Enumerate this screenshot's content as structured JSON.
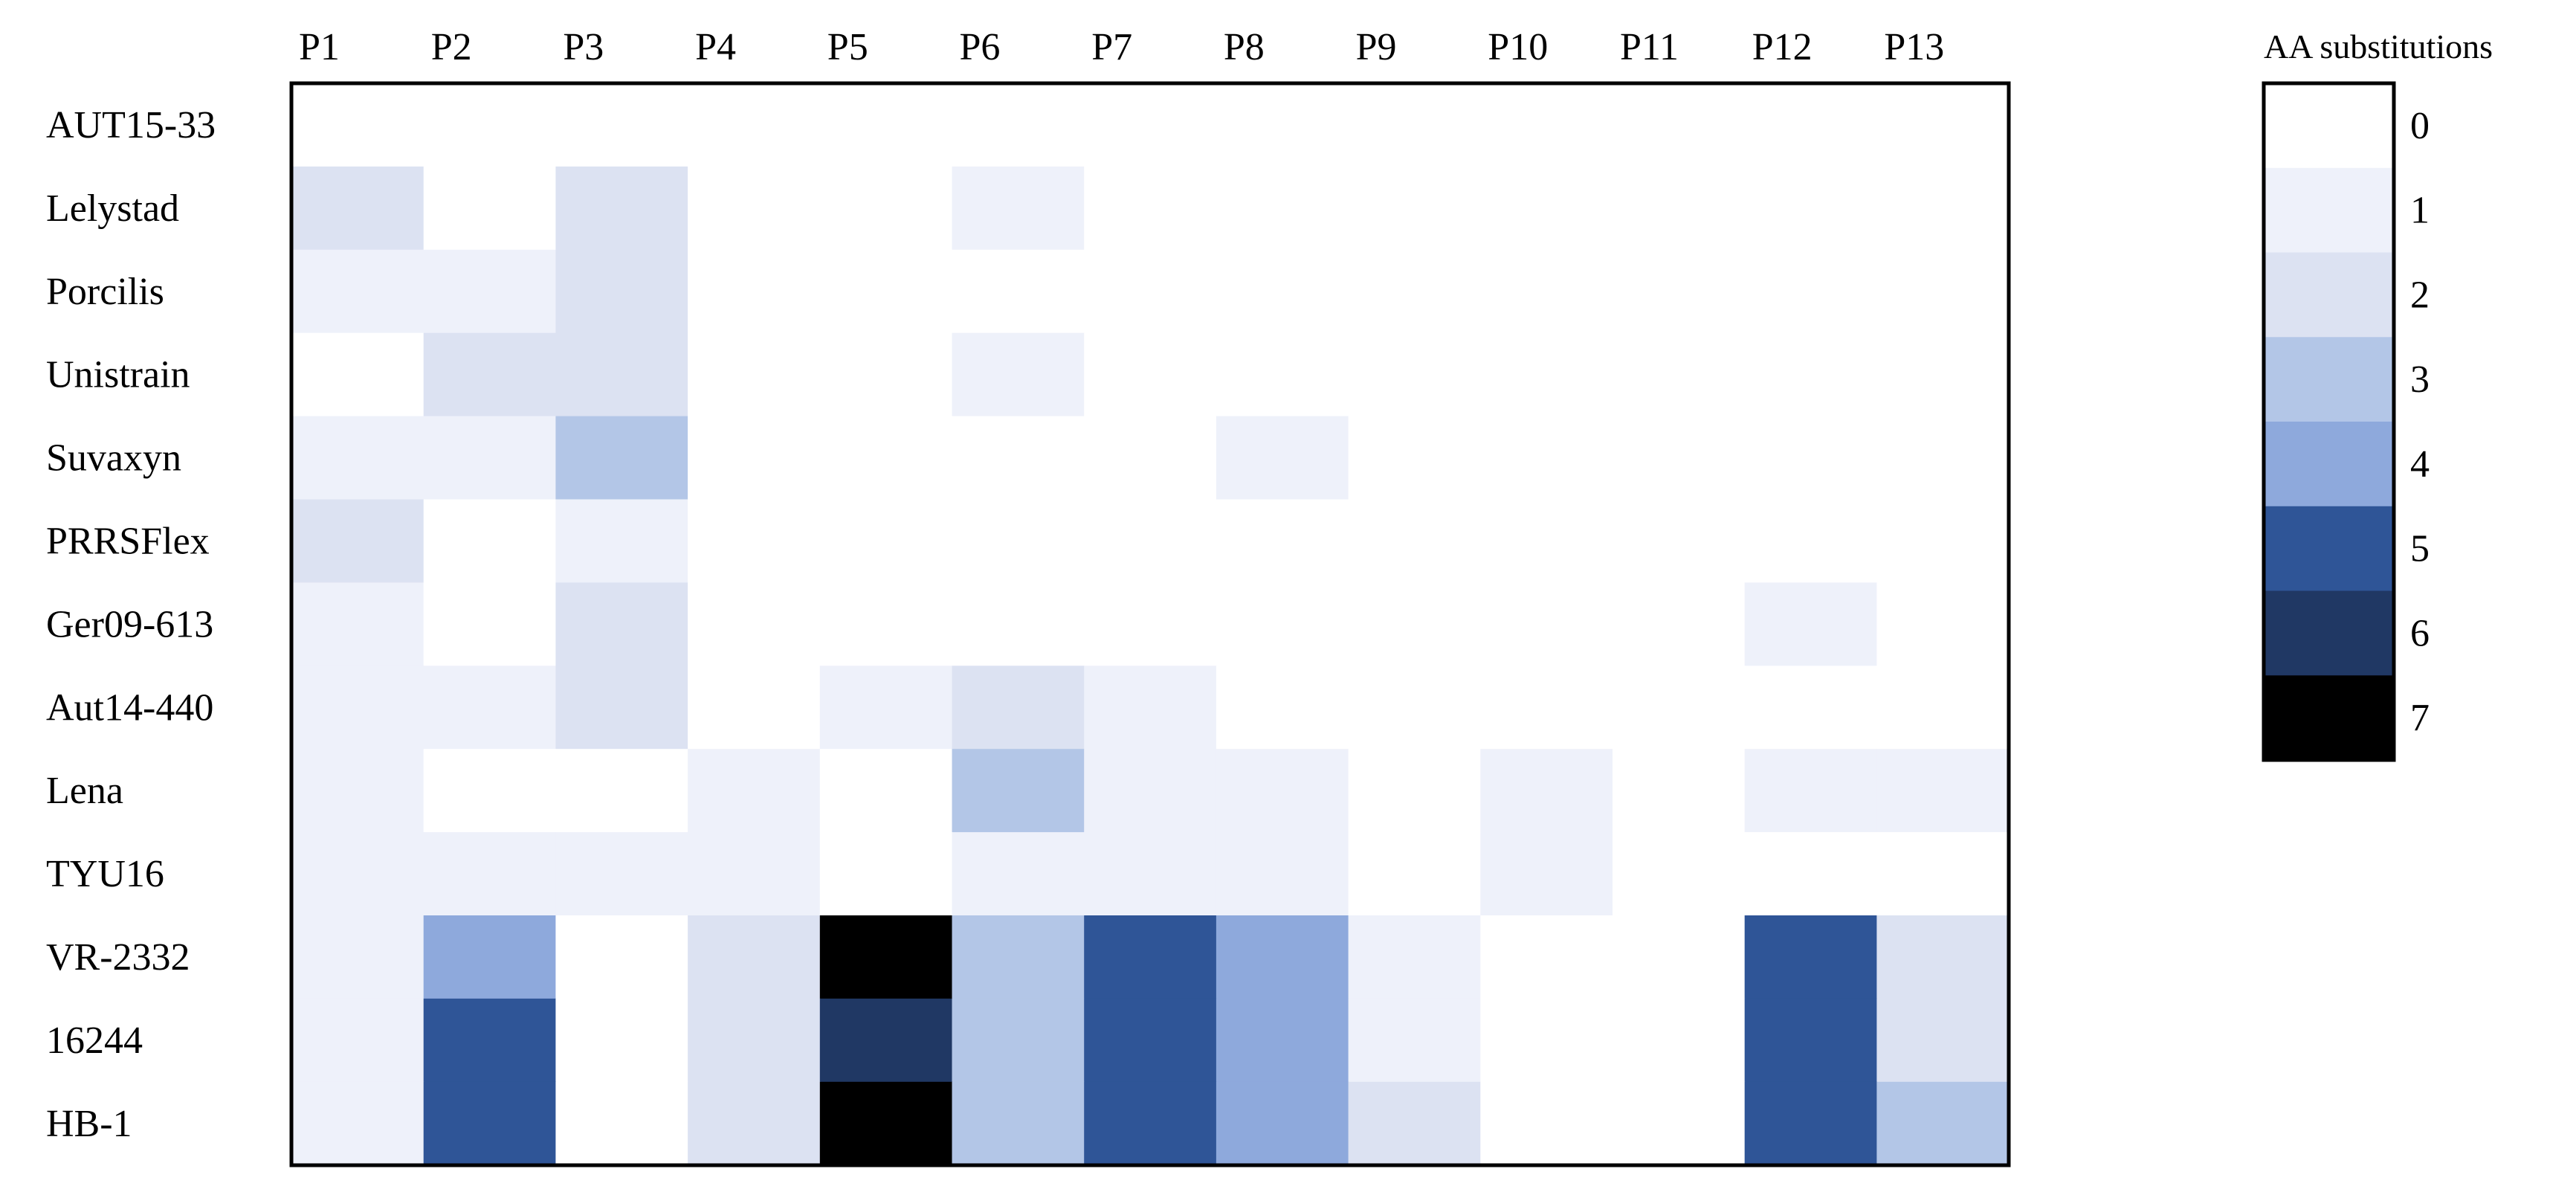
{
  "chart_data": {
    "type": "heatmap",
    "x_categories": [
      "P1",
      "P2",
      "P3",
      "P4",
      "P5",
      "P6",
      "P7",
      "P8",
      "P9",
      "P10",
      "P11",
      "P12",
      "P13"
    ],
    "y_categories": [
      "AUT15-33",
      "Lelystad",
      "Porcilis",
      "Unistrain",
      "Suvaxyn",
      "PRRSFlex",
      "Ger09-613",
      "Aut14-440",
      "Lena",
      "TYU16",
      "VR-2332",
      "16244",
      "HB-1"
    ],
    "values": [
      [
        0,
        0,
        0,
        0,
        0,
        0,
        0,
        0,
        0,
        0,
        0,
        0,
        0
      ],
      [
        2,
        0,
        2,
        0,
        0,
        1,
        0,
        0,
        0,
        0,
        0,
        0,
        0
      ],
      [
        1,
        1,
        2,
        0,
        0,
        0,
        0,
        0,
        0,
        0,
        0,
        0,
        0
      ],
      [
        0,
        2,
        2,
        0,
        0,
        1,
        0,
        0,
        0,
        0,
        0,
        0,
        0
      ],
      [
        1,
        1,
        3,
        0,
        0,
        0,
        0,
        1,
        0,
        0,
        0,
        0,
        0
      ],
      [
        2,
        0,
        1,
        0,
        0,
        0,
        0,
        0,
        0,
        0,
        0,
        0,
        0
      ],
      [
        1,
        0,
        2,
        0,
        0,
        0,
        0,
        0,
        0,
        0,
        0,
        1,
        0
      ],
      [
        1,
        1,
        2,
        0,
        1,
        2,
        1,
        0,
        0,
        0,
        0,
        0,
        0
      ],
      [
        1,
        0,
        0,
        1,
        0,
        3,
        1,
        1,
        0,
        1,
        0,
        1,
        1
      ],
      [
        1,
        1,
        1,
        1,
        0,
        1,
        1,
        1,
        0,
        1,
        0,
        0,
        0
      ],
      [
        1,
        4,
        0,
        2,
        7,
        3,
        5,
        4,
        1,
        0,
        0,
        5,
        2
      ],
      [
        1,
        5,
        0,
        2,
        6,
        3,
        5,
        4,
        1,
        0,
        0,
        5,
        2
      ],
      [
        1,
        5,
        0,
        2,
        7,
        3,
        5,
        4,
        2,
        0,
        0,
        5,
        3
      ]
    ],
    "legend": {
      "title": "AA substitutions",
      "levels": [
        "0",
        "1",
        "2",
        "3",
        "4",
        "5",
        "6",
        "7"
      ],
      "colors": [
        "#ffffff",
        "#eef1fa",
        "#dce2f2",
        "#b3c6e7",
        "#8ea9dc",
        "#2f5597",
        "#203864",
        "#000000"
      ],
      "placement": "right"
    }
  }
}
